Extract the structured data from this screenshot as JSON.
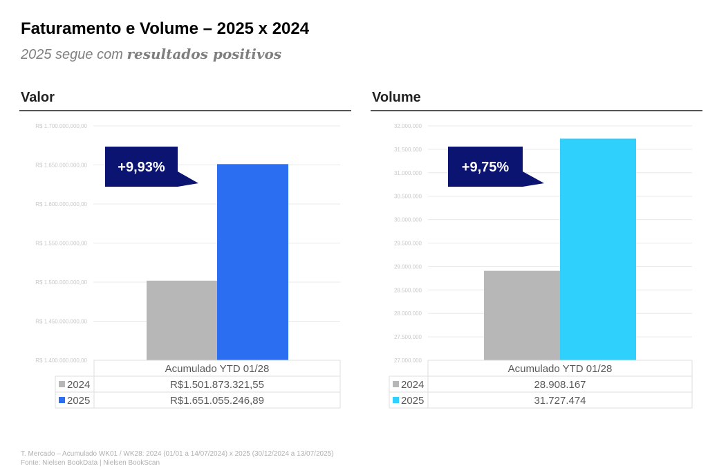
{
  "header": {
    "title": "Faturamento e Volume – 2025 x 2024",
    "subtitle_prefix": "2025 segue com ",
    "subtitle_bold": "resultados positivos"
  },
  "footnote": {
    "line1": "T. Mercado – Acumulado WK01 / WK28: 2024 (01/01 a 14/07/2024) x 2025 (30/12/2024 a 13/07/2025)",
    "line2": "Fonte: Nielsen BookData | Nielsen BookScan"
  },
  "colors": {
    "series_2024": "#b7b7b7",
    "valor_2025": "#2c6ef2",
    "volume_2025": "#30d0fc",
    "callout_bg": "#0c1472",
    "callout_text": "#ffffff",
    "grid": "#e8e8e8",
    "tick_text": "#c8c8c8"
  },
  "chart_data": [
    {
      "type": "bar",
      "panel_title": "Valor",
      "callout": "+9,93%",
      "categories": [
        "Acumulado YTD 01/28"
      ],
      "series": [
        {
          "name": "2024",
          "values": [
            1501873321.55
          ],
          "table_label": "R$1.501.873.321,55"
        },
        {
          "name": "2025",
          "values": [
            1651055246.89
          ],
          "table_label": "R$1.651.055.246,89"
        }
      ],
      "ylim": [
        1400000000,
        1700000000
      ],
      "yticks": [
        1400000000,
        1450000000,
        1500000000,
        1550000000,
        1600000000,
        1650000000,
        1700000000
      ],
      "ytick_labels": [
        "R$ 1.400.000.000,00",
        "R$ 1.450.000.000,00",
        "R$ 1.500.000.000,00",
        "R$ 1.550.000.000,00",
        "R$ 1.600.000.000,00",
        "R$ 1.650.000.000,00",
        "R$ 1.700.000.000,00"
      ],
      "grid": true,
      "data_table": true
    },
    {
      "type": "bar",
      "panel_title": "Volume",
      "callout": "+9,75%",
      "categories": [
        "Acumulado YTD 01/28"
      ],
      "series": [
        {
          "name": "2024",
          "values": [
            28908167
          ],
          "table_label": "28.908.167"
        },
        {
          "name": "2025",
          "values": [
            31727474
          ],
          "table_label": "31.727.474"
        }
      ],
      "ylim": [
        27000000,
        32000000
      ],
      "yticks": [
        27000000,
        27500000,
        28000000,
        28500000,
        29000000,
        29500000,
        30000000,
        30500000,
        31000000,
        31500000,
        32000000
      ],
      "ytick_labels": [
        "27.000.000",
        "27.500.000",
        "28.000.000",
        "28.500.000",
        "29.000.000",
        "29.500.000",
        "30.000.000",
        "30.500.000",
        "31.000.000",
        "31.500.000",
        "32.000.000"
      ],
      "grid": true,
      "data_table": true
    }
  ]
}
